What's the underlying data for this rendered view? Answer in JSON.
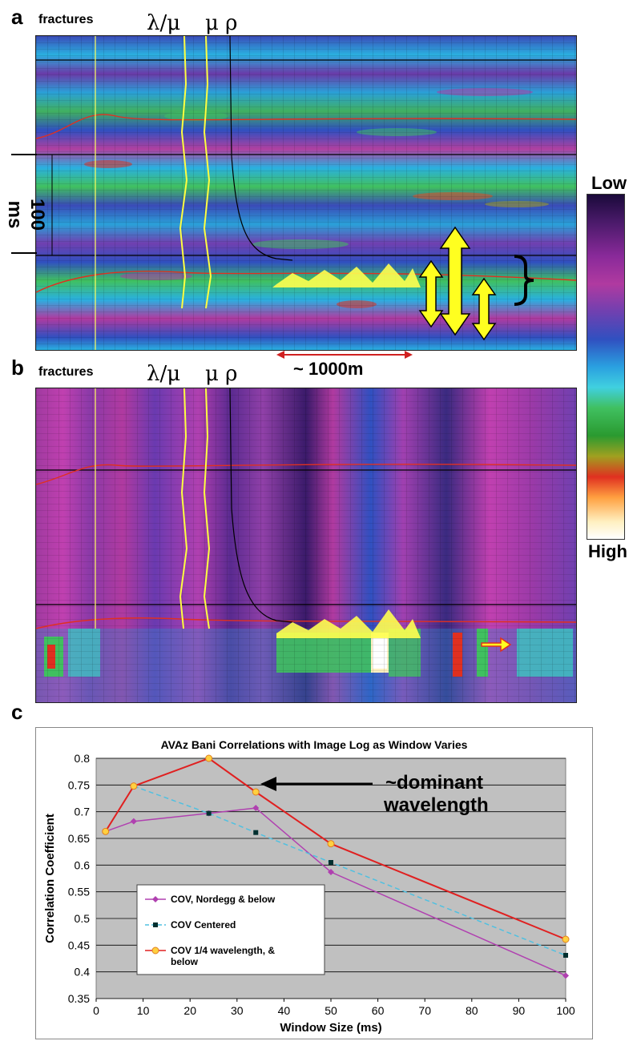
{
  "panels": {
    "a": {
      "letter": "a",
      "fractures_label": "fractures",
      "lambda_mu_label": "λ/μ",
      "mu_rho_label": "μ ρ",
      "scale_label": "100 ms",
      "distance_label": "~ 1000m"
    },
    "b": {
      "letter": "b",
      "fractures_label": "fractures",
      "lambda_mu_label": "λ/μ",
      "mu_rho_label": "μ ρ"
    },
    "c": {
      "letter": "c"
    }
  },
  "colorbar": {
    "top_label": "Low",
    "bottom_label": "High",
    "colors": [
      "#1a0a3a",
      "#4a1a6a",
      "#8a2a9a",
      "#b03aa0",
      "#7040b0",
      "#3050c0",
      "#2aa0e0",
      "#40d0e0",
      "#40c060",
      "#2a9a30",
      "#a0a020",
      "#e03020",
      "#ffa040",
      "#fff0c0",
      "#ffffff"
    ]
  },
  "annotations": {
    "arrow_text_line1": "~dominant",
    "arrow_text_line2": "wavelength"
  },
  "chart_data": {
    "type": "line",
    "title": "AVAz Bani Correlations with Image Log as Window Varies",
    "xlabel": "Window Size (ms)",
    "ylabel": "Correlation Coefficient",
    "xlim": [
      0,
      100
    ],
    "ylim": [
      0.35,
      0.8
    ],
    "xticks": [
      "0",
      "10",
      "20",
      "30",
      "40",
      "50",
      "60",
      "70",
      "80",
      "90",
      "100"
    ],
    "yticks": [
      "0.35",
      "0.4",
      "0.45",
      "0.5",
      "0.55",
      "0.6",
      "0.65",
      "0.7",
      "0.75",
      "0.8"
    ],
    "grid": true,
    "legend_position": "lower-left",
    "series": [
      {
        "name": "COV, Nordegg & below",
        "color": "#b040b0",
        "marker": "diamond",
        "line": "solid",
        "x": [
          2,
          8,
          24,
          34,
          50,
          100
        ],
        "y": [
          0.663,
          0.682,
          0.697,
          0.707,
          0.587,
          0.393
        ]
      },
      {
        "name": "COV Centered",
        "color": "#50c0e0",
        "marker": "square",
        "line": "dashed",
        "x": [
          8,
          24,
          34,
          50,
          100
        ],
        "y": [
          0.748,
          0.697,
          0.661,
          0.605,
          0.431
        ]
      },
      {
        "name": "COV 1/4 wavelength, & below",
        "color": "#e02020",
        "marker": "circle",
        "line": "solid",
        "x": [
          2,
          8,
          24,
          34,
          50,
          100
        ],
        "y": [
          0.663,
          0.748,
          0.8,
          0.737,
          0.64,
          0.461
        ]
      }
    ]
  }
}
